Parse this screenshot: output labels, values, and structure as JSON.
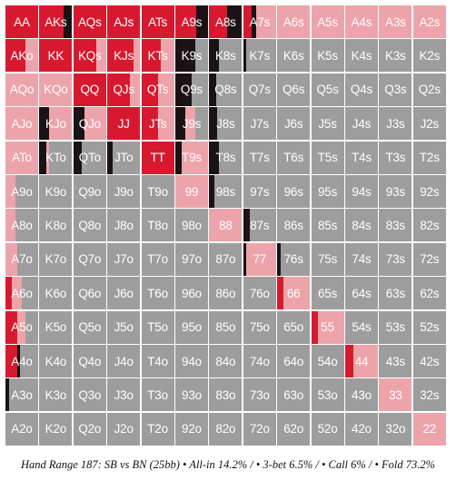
{
  "caption": "Hand Range 187: SB vs BN (25bb) • All-in 14.2% / • 3-bet 6.5% / • Call 6% / • Fold 73.2%",
  "colors": {
    "allin": "#d7192f",
    "threebet": "#1a1214",
    "call": "#eda3aa",
    "fold": "#9d9d9d",
    "text": "#ffffff"
  },
  "chart_data": {
    "type": "heatmap",
    "title": "Hand Range 187: SB vs BN (25bb)",
    "ranks": [
      "A",
      "K",
      "Q",
      "J",
      "T",
      "9",
      "8",
      "7",
      "6",
      "5",
      "4",
      "3",
      "2"
    ],
    "actions": [
      "All-in",
      "3-bet",
      "Call",
      "Fold"
    ],
    "totals": {
      "All-in": 14.2,
      "3-bet": 6.5,
      "Call": 6,
      "Fold": 73.2
    },
    "rows": [
      {
        "labels": [
          "AA",
          "AKs",
          "AQs",
          "AJs",
          "ATs",
          "A9s",
          "A8s",
          "A7s",
          "A6s",
          "A5s",
          "A4s",
          "A3s",
          "A2s"
        ],
        "mix": [
          [
            1,
            0,
            0,
            0
          ],
          [
            0.75,
            0.25,
            0,
            0
          ],
          [
            1,
            0,
            0,
            0
          ],
          [
            1,
            0,
            0,
            0
          ],
          [
            1,
            0,
            0,
            0
          ],
          [
            0.65,
            0.35,
            0,
            0
          ],
          [
            0.55,
            0.45,
            0,
            0
          ],
          [
            0.25,
            0.15,
            0.6,
            0
          ],
          [
            0,
            0,
            1,
            0
          ],
          [
            0,
            0,
            1,
            0
          ],
          [
            0,
            0,
            1,
            0
          ],
          [
            0,
            0,
            1,
            0
          ],
          [
            0,
            0,
            1,
            0
          ]
        ]
      },
      {
        "labels": [
          "AKo",
          "KK",
          "KQs",
          "KJs",
          "KTs",
          "K9s",
          "K8s",
          "K7s",
          "K6s",
          "K5s",
          "K4s",
          "K3s",
          "K2s"
        ],
        "mix": [
          [
            0.6,
            0,
            0.4,
            0
          ],
          [
            1,
            0,
            0,
            0
          ],
          [
            0.7,
            0,
            0.3,
            0
          ],
          [
            0.8,
            0,
            0.2,
            0
          ],
          [
            0.6,
            0,
            0.4,
            0
          ],
          [
            0,
            0.6,
            0,
            0.4
          ],
          [
            0,
            0.3,
            0,
            0.7
          ],
          [
            0,
            0.1,
            0,
            0.9
          ],
          [
            0,
            0,
            0,
            1
          ],
          [
            0,
            0,
            0,
            1
          ],
          [
            0,
            0,
            0,
            1
          ],
          [
            0,
            0,
            0,
            1
          ],
          [
            0,
            0,
            0,
            1
          ]
        ]
      },
      {
        "labels": [
          "AQo",
          "KQo",
          "QQ",
          "QJs",
          "QTs",
          "Q9s",
          "Q8s",
          "Q7s",
          "Q6s",
          "Q5s",
          "Q4s",
          "Q3s",
          "Q2s"
        ],
        "mix": [
          [
            0,
            0,
            1,
            0
          ],
          [
            0,
            0,
            1,
            0
          ],
          [
            1,
            0,
            0,
            0
          ],
          [
            0.7,
            0,
            0.3,
            0
          ],
          [
            0.5,
            0,
            0.5,
            0
          ],
          [
            0,
            0.5,
            0,
            0.5
          ],
          [
            0,
            0.2,
            0,
            0.8
          ],
          [
            0,
            0,
            0,
            1
          ],
          [
            0,
            0,
            0,
            1
          ],
          [
            0,
            0,
            0,
            1
          ],
          [
            0,
            0,
            0,
            1
          ],
          [
            0,
            0,
            0,
            1
          ],
          [
            0,
            0,
            0,
            1
          ]
        ]
      },
      {
        "labels": [
          "AJo",
          "KJo",
          "QJo",
          "JJ",
          "JTs",
          "J9s",
          "J8s",
          "J7s",
          "J6s",
          "J5s",
          "J4s",
          "J3s",
          "J2s"
        ],
        "mix": [
          [
            0,
            0,
            1,
            0
          ],
          [
            0,
            0.3,
            0.7,
            0
          ],
          [
            0,
            0.35,
            0.65,
            0
          ],
          [
            1,
            0,
            0,
            0
          ],
          [
            0.5,
            0,
            0.5,
            0
          ],
          [
            0,
            0.3,
            0.3,
            0.4
          ],
          [
            0,
            0.25,
            0,
            0.75
          ],
          [
            0,
            0,
            0,
            1
          ],
          [
            0,
            0,
            0,
            1
          ],
          [
            0,
            0,
            0,
            1
          ],
          [
            0,
            0,
            0,
            1
          ],
          [
            0,
            0,
            0,
            1
          ],
          [
            0,
            0,
            0,
            1
          ]
        ]
      },
      {
        "labels": [
          "ATo",
          "KTo",
          "QTo",
          "JTo",
          "TT",
          "T9s",
          "T8s",
          "T7s",
          "T6s",
          "T5s",
          "T4s",
          "T3s",
          "T2s"
        ],
        "mix": [
          [
            0,
            0,
            1,
            0
          ],
          [
            0,
            0.2,
            0.1,
            0.7
          ],
          [
            0,
            0.25,
            0,
            0.75
          ],
          [
            0,
            0.15,
            0,
            0.85
          ],
          [
            1,
            0,
            0,
            0
          ],
          [
            0,
            0.2,
            0.8,
            0
          ],
          [
            0,
            0.3,
            0,
            0.7
          ],
          [
            0,
            0,
            0,
            1
          ],
          [
            0,
            0,
            0,
            1
          ],
          [
            0,
            0,
            0,
            1
          ],
          [
            0,
            0,
            0,
            1
          ],
          [
            0,
            0,
            0,
            1
          ],
          [
            0,
            0,
            0,
            1
          ]
        ]
      },
      {
        "labels": [
          "A9o",
          "K9o",
          "Q9o",
          "J9o",
          "T9o",
          "99",
          "98s",
          "97s",
          "96s",
          "95s",
          "94s",
          "93s",
          "92s"
        ],
        "mix": [
          [
            0,
            0,
            0.3,
            0.7
          ],
          [
            0,
            0,
            0,
            1
          ],
          [
            0,
            0,
            0,
            1
          ],
          [
            0,
            0,
            0,
            1
          ],
          [
            0,
            0,
            0,
            1
          ],
          [
            0,
            0,
            1,
            0
          ],
          [
            0,
            0.15,
            0,
            0.85
          ],
          [
            0,
            0,
            0,
            1
          ],
          [
            0,
            0,
            0,
            1
          ],
          [
            0,
            0,
            0,
            1
          ],
          [
            0,
            0,
            0,
            1
          ],
          [
            0,
            0,
            0,
            1
          ],
          [
            0,
            0,
            0,
            1
          ]
        ]
      },
      {
        "labels": [
          "A8o",
          "K8o",
          "Q8o",
          "J8o",
          "T8o",
          "98o",
          "88",
          "87s",
          "86s",
          "85s",
          "84s",
          "83s",
          "82s"
        ],
        "mix": [
          [
            0,
            0,
            0.3,
            0.7
          ],
          [
            0,
            0,
            0,
            1
          ],
          [
            0,
            0,
            0,
            1
          ],
          [
            0,
            0,
            0,
            1
          ],
          [
            0,
            0,
            0,
            1
          ],
          [
            0,
            0,
            0,
            1
          ],
          [
            0,
            0,
            1,
            0
          ],
          [
            0,
            0.2,
            0,
            0.8
          ],
          [
            0,
            0,
            0,
            1
          ],
          [
            0,
            0,
            0,
            1
          ],
          [
            0,
            0,
            0,
            1
          ],
          [
            0,
            0,
            0,
            1
          ],
          [
            0,
            0,
            0,
            1
          ]
        ]
      },
      {
        "labels": [
          "A7o",
          "K7o",
          "Q7o",
          "J7o",
          "T7o",
          "97o",
          "87o",
          "77",
          "76s",
          "75s",
          "74s",
          "73s",
          "72s"
        ],
        "mix": [
          [
            0,
            0,
            0.35,
            0.65
          ],
          [
            0,
            0,
            0,
            1
          ],
          [
            0,
            0,
            0,
            1
          ],
          [
            0,
            0,
            0,
            1
          ],
          [
            0,
            0,
            0,
            1
          ],
          [
            0,
            0,
            0,
            1
          ],
          [
            0,
            0,
            0,
            1
          ],
          [
            0,
            0.1,
            0.9,
            0
          ],
          [
            0,
            0.1,
            0,
            0.9
          ],
          [
            0,
            0,
            0,
            1
          ],
          [
            0,
            0,
            0,
            1
          ],
          [
            0,
            0,
            0,
            1
          ],
          [
            0,
            0,
            0,
            1
          ]
        ]
      },
      {
        "labels": [
          "A6o",
          "K6o",
          "Q6o",
          "J6o",
          "T6o",
          "96o",
          "86o",
          "76o",
          "66",
          "65s",
          "64s",
          "63s",
          "62s"
        ],
        "mix": [
          [
            0.2,
            0,
            0.3,
            0.5
          ],
          [
            0,
            0,
            0,
            1
          ],
          [
            0,
            0,
            0,
            1
          ],
          [
            0,
            0,
            0,
            1
          ],
          [
            0,
            0,
            0,
            1
          ],
          [
            0,
            0,
            0,
            1
          ],
          [
            0,
            0,
            0,
            1
          ],
          [
            0,
            0,
            0,
            1
          ],
          [
            0.2,
            0,
            0.8,
            0
          ],
          [
            0,
            0,
            0,
            1
          ],
          [
            0,
            0,
            0,
            1
          ],
          [
            0,
            0,
            0,
            1
          ],
          [
            0,
            0,
            0,
            1
          ]
        ]
      },
      {
        "labels": [
          "A5o",
          "K5o",
          "Q5o",
          "J5o",
          "T5o",
          "95o",
          "85o",
          "75o",
          "65o",
          "55",
          "54s",
          "53s",
          "52s"
        ],
        "mix": [
          [
            0.35,
            0,
            0.25,
            0.4
          ],
          [
            0,
            0,
            0,
            1
          ],
          [
            0,
            0,
            0,
            1
          ],
          [
            0,
            0,
            0,
            1
          ],
          [
            0,
            0,
            0,
            1
          ],
          [
            0,
            0,
            0,
            1
          ],
          [
            0,
            0,
            0,
            1
          ],
          [
            0,
            0,
            0,
            1
          ],
          [
            0,
            0,
            0,
            1
          ],
          [
            0.2,
            0,
            0.8,
            0
          ],
          [
            0,
            0,
            0,
            1
          ],
          [
            0,
            0,
            0,
            1
          ],
          [
            0,
            0,
            0,
            1
          ]
        ]
      },
      {
        "labels": [
          "A4o",
          "K4o",
          "Q4o",
          "J4o",
          "T4o",
          "94o",
          "84o",
          "74o",
          "64o",
          "54o",
          "44",
          "43s",
          "42s"
        ],
        "mix": [
          [
            0.35,
            0.1,
            0,
            0.55
          ],
          [
            0,
            0,
            0,
            1
          ],
          [
            0,
            0,
            0,
            1
          ],
          [
            0,
            0,
            0,
            1
          ],
          [
            0,
            0,
            0,
            1
          ],
          [
            0,
            0,
            0,
            1
          ],
          [
            0,
            0,
            0,
            1
          ],
          [
            0,
            0,
            0,
            1
          ],
          [
            0,
            0,
            0,
            1
          ],
          [
            0,
            0,
            0,
            1
          ],
          [
            0.25,
            0,
            0.75,
            0
          ],
          [
            0,
            0,
            0,
            1
          ],
          [
            0,
            0,
            0,
            1
          ]
        ]
      },
      {
        "labels": [
          "A3o",
          "K3o",
          "Q3o",
          "J3o",
          "T3o",
          "93o",
          "83o",
          "73o",
          "63o",
          "53o",
          "43o",
          "33",
          "32s"
        ],
        "mix": [
          [
            0,
            0.1,
            0,
            0.9
          ],
          [
            0,
            0,
            0,
            1
          ],
          [
            0,
            0,
            0,
            1
          ],
          [
            0,
            0,
            0,
            1
          ],
          [
            0,
            0,
            0,
            1
          ],
          [
            0,
            0,
            0,
            1
          ],
          [
            0,
            0,
            0,
            1
          ],
          [
            0,
            0,
            0,
            1
          ],
          [
            0,
            0,
            0,
            1
          ],
          [
            0,
            0,
            0,
            1
          ],
          [
            0,
            0,
            0,
            1
          ],
          [
            0,
            0,
            1,
            0
          ],
          [
            0,
            0,
            0,
            1
          ]
        ]
      },
      {
        "labels": [
          "A2o",
          "K2o",
          "Q2o",
          "J2o",
          "T2o",
          "92o",
          "82o",
          "72o",
          "62o",
          "52o",
          "42o",
          "32o",
          "22"
        ],
        "mix": [
          [
            0,
            0,
            0,
            1
          ],
          [
            0,
            0,
            0,
            1
          ],
          [
            0,
            0,
            0,
            1
          ],
          [
            0,
            0,
            0,
            1
          ],
          [
            0,
            0,
            0,
            1
          ],
          [
            0,
            0,
            0,
            1
          ],
          [
            0,
            0,
            0,
            1
          ],
          [
            0,
            0,
            0,
            1
          ],
          [
            0,
            0,
            0,
            1
          ],
          [
            0,
            0,
            0,
            1
          ],
          [
            0,
            0,
            0,
            1
          ],
          [
            0,
            0,
            0,
            1
          ],
          [
            0,
            0,
            1,
            0
          ]
        ]
      }
    ]
  }
}
